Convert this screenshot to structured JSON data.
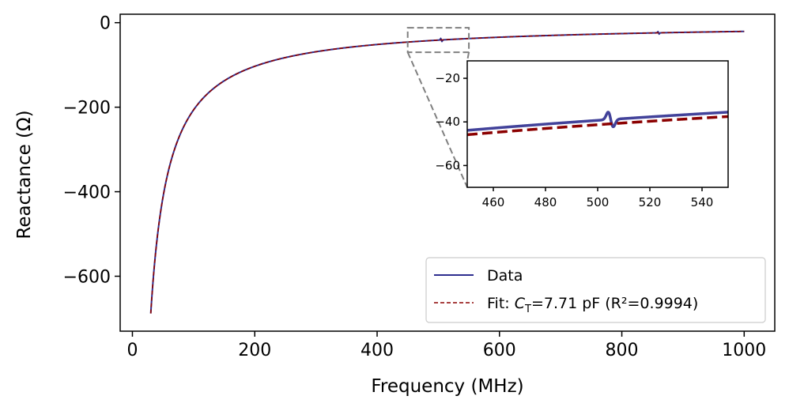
{
  "chart_data": {
    "type": "line",
    "title": "",
    "xlabel": "Frequency (MHz)",
    "ylabel": "Reactance (Ω)",
    "xlim": [
      -20,
      1050
    ],
    "ylim": [
      -730,
      20
    ],
    "x_ticks": [
      0,
      200,
      400,
      600,
      800,
      1000
    ],
    "x_tick_labels": [
      "0",
      "200",
      "400",
      "600",
      "800",
      "1000"
    ],
    "y_ticks": [
      0,
      -200,
      -400,
      -600
    ],
    "y_tick_labels": [
      "0",
      "−200",
      "−400",
      "−600"
    ],
    "series": [
      {
        "name": "Data",
        "color": "#2e2e8f",
        "style": "solid",
        "model": "capacitive reactance X = -1/(2*pi*f*C) with small resonance features",
        "capacitance_pF": 7.71,
        "f_range_MHz": [
          30,
          1000
        ],
        "resonances": [
          {
            "f_MHz": 505,
            "amplitude_ohm": 5
          },
          {
            "f_MHz": 860,
            "amplitude_ohm": 4
          }
        ]
      },
      {
        "name": "Fit",
        "color": "#8b0000",
        "style": "dashed",
        "capacitance_pF": 7.71,
        "r_squared": 0.9994,
        "f_range_MHz": [
          30,
          1000
        ]
      }
    ],
    "legend": {
      "placement": "lower-right",
      "entries": [
        {
          "series": "Data",
          "label": "Data"
        },
        {
          "series": "Fit",
          "label_prefix": "Fit: ",
          "label_symbol": "C",
          "label_subscript": "T",
          "label_suffix": "=7.71 pF (R²=0.9994)"
        }
      ]
    },
    "inset": {
      "xlim": [
        450,
        550
      ],
      "ylim": [
        -70,
        -12
      ],
      "x_ticks": [
        460,
        480,
        500,
        520,
        540
      ],
      "x_tick_labels": [
        "460",
        "480",
        "500",
        "520",
        "540"
      ],
      "y_ticks": [
        -20,
        -40,
        -60
      ],
      "y_tick_labels": [
        "−20",
        "−40",
        "−60"
      ],
      "data_offset_ohm": 2.0,
      "zoom_box_color": "#808080"
    }
  }
}
